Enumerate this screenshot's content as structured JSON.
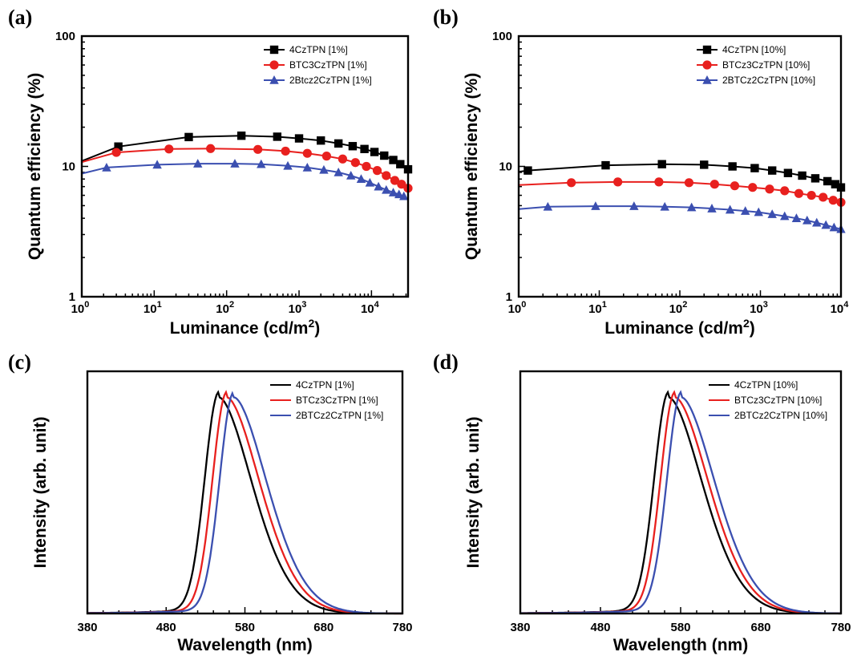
{
  "colors": {
    "black": "#000000",
    "red": "#e8201e",
    "blue": "#3b4fb0"
  },
  "chart_data": [
    {
      "panel": "(a)",
      "type": "line",
      "xlabel": "Luminance (cd/m²)",
      "ylabel": "Quantum efficiency (%)",
      "xscale": "log",
      "yscale": "log",
      "xlim": [
        1,
        32000
      ],
      "ylim": [
        1,
        100
      ],
      "x_ticks": [
        {
          "base": "10",
          "exp": "0"
        },
        {
          "base": "10",
          "exp": "1"
        },
        {
          "base": "10",
          "exp": "2"
        },
        {
          "base": "10",
          "exp": "3"
        },
        {
          "base": "10",
          "exp": "4"
        }
      ],
      "y_ticks": [
        "1",
        "10",
        "100"
      ],
      "legend": "top-right",
      "series": [
        {
          "name": "4CzTPN [1%]",
          "color": "#000000",
          "marker": "square",
          "x": [
            1,
            3.2,
            30,
            160,
            500,
            1000,
            2000,
            3500,
            5500,
            8000,
            11000,
            15000,
            20000,
            25000,
            32000
          ],
          "y": [
            11,
            14.2,
            16.8,
            17.2,
            16.9,
            16.4,
            15.8,
            15,
            14.3,
            13.6,
            12.9,
            12.1,
            11.2,
            10.4,
            9.5
          ]
        },
        {
          "name": "BTC3CzTPN [1%]",
          "color": "#e8201e",
          "marker": "circle",
          "x": [
            1,
            3,
            16,
            60,
            270,
            650,
            1300,
            2400,
            4000,
            6000,
            8500,
            12000,
            16000,
            21000,
            26000,
            32000
          ],
          "y": [
            10.8,
            12.8,
            13.6,
            13.7,
            13.5,
            13.1,
            12.6,
            12,
            11.4,
            10.7,
            10,
            9.3,
            8.5,
            7.8,
            7.3,
            6.8
          ]
        },
        {
          "name": "2Btcz2CzTPN [1%]",
          "color": "#3b4fb0",
          "marker": "triangle",
          "x": [
            1,
            2.2,
            11,
            40,
            130,
            300,
            700,
            1300,
            2200,
            3500,
            5200,
            7200,
            9500,
            12500,
            16000,
            20000,
            24000,
            28000
          ],
          "y": [
            8.8,
            9.8,
            10.3,
            10.5,
            10.5,
            10.4,
            10.1,
            9.8,
            9.4,
            9,
            8.5,
            8,
            7.5,
            7,
            6.6,
            6.3,
            6.1,
            5.9
          ]
        }
      ]
    },
    {
      "panel": "(b)",
      "type": "line",
      "xlabel": "Luminance (cd/m²)",
      "ylabel": "Quantum efficiency (%)",
      "xscale": "log",
      "yscale": "log",
      "xlim": [
        1,
        10000
      ],
      "ylim": [
        1,
        100
      ],
      "x_ticks": [
        {
          "base": "10",
          "exp": "0"
        },
        {
          "base": "10",
          "exp": "1"
        },
        {
          "base": "10",
          "exp": "2"
        },
        {
          "base": "10",
          "exp": "3"
        },
        {
          "base": "10",
          "exp": "4"
        }
      ],
      "y_ticks": [
        "1",
        "10",
        "100"
      ],
      "legend": "top-right",
      "series": [
        {
          "name": "4CzTPN [10%]",
          "color": "#000000",
          "marker": "square",
          "x": [
            1,
            1.3,
            12,
            60,
            200,
            450,
            850,
            1400,
            2200,
            3300,
            4800,
            6800,
            8500,
            10000
          ],
          "y": [
            9.1,
            9.3,
            10.2,
            10.4,
            10.3,
            10,
            9.7,
            9.3,
            8.9,
            8.5,
            8.1,
            7.7,
            7.3,
            6.9
          ]
        },
        {
          "name": "BTCz3CzTPN [10%]",
          "color": "#e8201e",
          "marker": "circle",
          "x": [
            1,
            4.5,
            17,
            55,
            130,
            270,
            480,
            800,
            1300,
            2000,
            3000,
            4300,
            6000,
            8000,
            10000
          ],
          "y": [
            7.2,
            7.5,
            7.6,
            7.6,
            7.5,
            7.3,
            7.1,
            6.9,
            6.7,
            6.5,
            6.2,
            6,
            5.8,
            5.5,
            5.3
          ]
        },
        {
          "name": "2BTCz2CzTPN [10%]",
          "color": "#3b4fb0",
          "marker": "triangle",
          "x": [
            1,
            2.3,
            9,
            27,
            65,
            140,
            250,
            420,
            650,
            950,
            1400,
            2000,
            2800,
            3800,
            5000,
            6500,
            8200,
            10000
          ],
          "y": [
            4.7,
            4.9,
            4.95,
            4.95,
            4.9,
            4.85,
            4.75,
            4.65,
            4.55,
            4.45,
            4.3,
            4.15,
            4,
            3.85,
            3.7,
            3.55,
            3.4,
            3.3
          ]
        }
      ]
    },
    {
      "panel": "(c)",
      "type": "line",
      "xlabel": "Wavelength (nm)",
      "ylabel": "Intensity (arb. unit)",
      "xlim": [
        380,
        780
      ],
      "ylim": [
        0,
        1.12
      ],
      "x_ticks": [
        "380",
        "480",
        "580",
        "680",
        "780"
      ],
      "legend": "top-right",
      "series": [
        {
          "name": "4CzTPN [1%]",
          "color": "#000000",
          "peak": 547
        },
        {
          "name": "BTCz3CzTPN [1%]",
          "color": "#e8201e",
          "peak": 557
        },
        {
          "name": "2BTCz2CzTPN [1%]",
          "color": "#3b4fb0",
          "peak": 566
        }
      ]
    },
    {
      "panel": "(d)",
      "type": "line",
      "xlabel": "Wavelength (nm)",
      "ylabel": "Intensity (arb. unit)",
      "xlim": [
        380,
        780
      ],
      "ylim": [
        0,
        1.12
      ],
      "x_ticks": [
        "380",
        "480",
        "580",
        "680",
        "780"
      ],
      "legend": "top-right",
      "series": [
        {
          "name": "4CzTPN [10%]",
          "color": "#000000",
          "peak": 565
        },
        {
          "name": "BTCz3CzTPN [10%]",
          "color": "#e8201e",
          "peak": 573
        },
        {
          "name": "2BTCz2CzTPN [10%]",
          "color": "#3b4fb0",
          "peak": 581
        }
      ]
    }
  ]
}
